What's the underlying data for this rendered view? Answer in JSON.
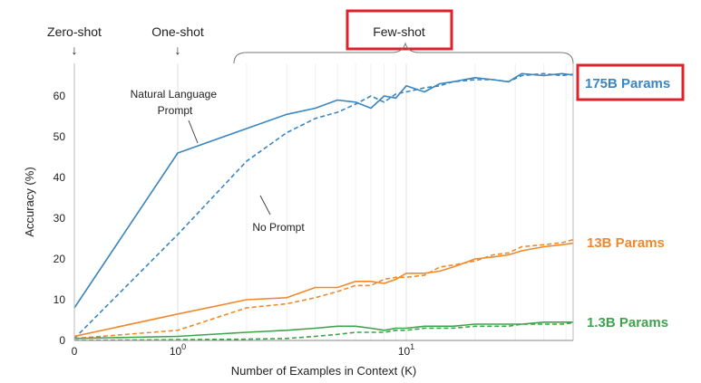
{
  "chart_data": {
    "type": "line",
    "xlabel": "Number of Examples in Context (K)",
    "ylabel": "Accuracy (%)",
    "ylim": [
      0,
      68
    ],
    "xscale": "log (with K=0 shown at left edge)",
    "x_ticks": [
      {
        "x": 0,
        "label": "0",
        "sup": ""
      },
      {
        "x": 1,
        "label": "10",
        "sup": "0"
      },
      {
        "x": 10,
        "label": "10",
        "sup": "1"
      }
    ],
    "y_ticks": [
      0,
      10,
      20,
      30,
      40,
      50,
      60
    ],
    "grid": "vertical minor log gridlines",
    "x": [
      0,
      1,
      2,
      3,
      4,
      5,
      6,
      7,
      8,
      9,
      10,
      12,
      14,
      16,
      20,
      24,
      28,
      32,
      40,
      48,
      56,
      64
    ],
    "series": [
      {
        "name": "175B Params",
        "style": "solid",
        "color": "#3a86c0",
        "values": [
          8,
          46,
          52,
          55.5,
          57,
          59,
          58.5,
          57,
          60,
          59.5,
          62.5,
          61,
          63,
          63.5,
          64.5,
          64,
          63.5,
          65.5,
          65,
          65.5,
          65,
          66
        ]
      },
      {
        "name": "175B Params",
        "style": "dashed",
        "color": "#3a86c0",
        "values": [
          0.5,
          26,
          44,
          51,
          54.5,
          56,
          58,
          60,
          58.5,
          60.5,
          61,
          62,
          62.5,
          63.5,
          64,
          64,
          63.5,
          65,
          65.5,
          65,
          65.5,
          66
        ]
      },
      {
        "name": "13B Params",
        "style": "solid",
        "color": "#f0892e",
        "values": [
          1,
          6.5,
          10,
          10.5,
          13,
          13,
          14.5,
          14.5,
          14,
          15,
          16.5,
          16.5,
          17,
          18,
          20,
          20.5,
          21,
          22,
          23,
          23.5,
          24,
          24.5
        ]
      },
      {
        "name": "13B Params",
        "style": "dashed",
        "color": "#f0892e",
        "values": [
          0.5,
          2.5,
          8,
          9,
          10.5,
          12,
          13.5,
          13.5,
          15,
          15.5,
          15.5,
          16,
          18,
          18.5,
          19.5,
          21,
          21.5,
          23,
          23.5,
          24,
          25,
          26
        ]
      },
      {
        "name": "1.3B Params",
        "style": "solid",
        "color": "#3fa34d",
        "values": [
          0.5,
          1,
          2,
          2.5,
          3,
          3.5,
          3.5,
          3,
          2.5,
          3,
          3,
          3.5,
          3.5,
          3.5,
          4,
          4,
          4,
          4,
          4.5,
          4.5,
          4.5,
          4.5
        ]
      },
      {
        "name": "1.3B Params",
        "style": "dashed",
        "color": "#3fa34d",
        "values": [
          0,
          0.2,
          0.3,
          0.5,
          1,
          1.5,
          2,
          2,
          2,
          2.5,
          2.5,
          3,
          3,
          3,
          3.5,
          3.5,
          3.5,
          4,
          4,
          4,
          4.5,
          4.5
        ]
      }
    ],
    "series_labels": [
      {
        "text": "175B Params",
        "color": "#3a86c0",
        "boxed": true,
        "y": 66
      },
      {
        "text": "13B Params",
        "color": "#f0892e",
        "boxed": false,
        "y": 25
      },
      {
        "text": "1.3B Params",
        "color": "#3fa34d",
        "boxed": false,
        "y": 4.5
      }
    ],
    "annotations": [
      {
        "text": [
          "Natural Language",
          "Prompt"
        ],
        "points_to": "175B solid"
      },
      {
        "text": [
          "No Prompt"
        ],
        "points_to": "175B dashed"
      }
    ],
    "shot_labels": [
      {
        "text": "Zero-shot",
        "arrow": "↓"
      },
      {
        "text": "One-shot",
        "arrow": "↓"
      },
      {
        "text": "Few-shot",
        "boxed": true
      }
    ],
    "accent": {
      "highlight_box": "#e0202a"
    }
  }
}
